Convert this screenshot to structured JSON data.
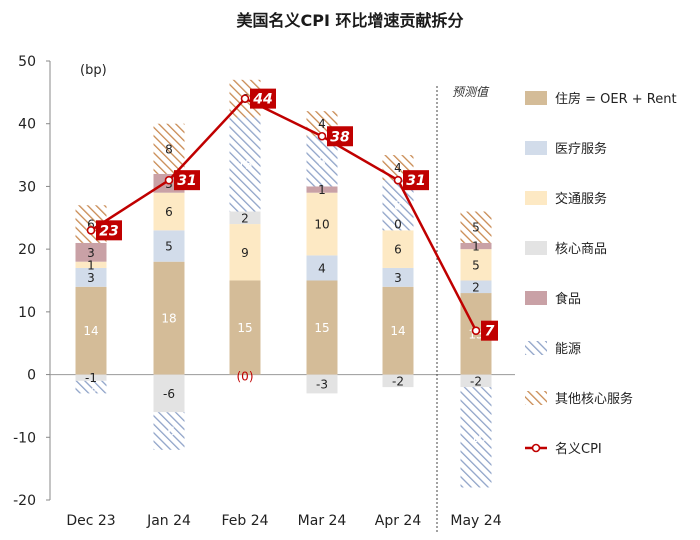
{
  "chart_data": {
    "type": "bar",
    "stacked": true,
    "title": "美国名义CPI 环比增速贡献拆分",
    "unit_label": "(bp)",
    "forecast_label": "预测值",
    "categories": [
      "Dec 23",
      "Jan 24",
      "Feb 24",
      "Mar 24",
      "Apr 24",
      "May 24"
    ],
    "ylim": [
      -20,
      50
    ],
    "yticks": [
      -20,
      -10,
      0,
      10,
      20,
      30,
      40,
      50
    ],
    "series": [
      {
        "name": "住房 = OER + Rent",
        "color": "#d4bc98",
        "pattern": "solid",
        "values": [
          14,
          18,
          15,
          15,
          14,
          13
        ],
        "labels": [
          "14",
          "18",
          "15",
          "15",
          "14",
          "13"
        ],
        "label_color": "#ffffff"
      },
      {
        "name": "医疗服务",
        "color": "#d2dcea",
        "pattern": "solid",
        "values": [
          3,
          5,
          0,
          4,
          3,
          2
        ],
        "labels": [
          "3",
          "5",
          "(0)",
          "4",
          "3",
          "2"
        ],
        "label_color": "#222222"
      },
      {
        "name": "交通服务",
        "color": "#fde9c4",
        "pattern": "solid",
        "values": [
          1,
          6,
          9,
          10,
          6,
          5
        ],
        "labels": [
          "1",
          "6",
          "9",
          "10",
          "6",
          "5"
        ],
        "label_color": "#222222"
      },
      {
        "name": "核心商品",
        "color": "#e3e3e3",
        "pattern": "solid",
        "values": [
          -1,
          -6,
          2,
          -3,
          -2,
          -2
        ],
        "labels": [
          "-1",
          "-6",
          "2",
          "-3",
          "-2",
          "-2"
        ],
        "label_color": "#222222"
      },
      {
        "name": "食品",
        "color": "#c9a1a6",
        "pattern": "solid",
        "values": [
          3,
          3,
          0,
          1,
          0,
          1
        ],
        "labels": [
          "3",
          "3",
          "",
          "1",
          "0",
          "1"
        ],
        "label_color": "#222222"
      },
      {
        "name": "能源",
        "color": "#8fa3c8",
        "pattern": "diag-blue",
        "values": [
          -2,
          -6,
          15,
          8,
          8,
          -16
        ],
        "labels": [
          "-2",
          "-6",
          "15",
          "8",
          "8",
          "-16"
        ],
        "label_color": "#ffffff"
      },
      {
        "name": "其他核心服务",
        "color": "#c98a52",
        "pattern": "diag-orange",
        "values": [
          6,
          8,
          6,
          4,
          4,
          5
        ],
        "labels": [
          "6",
          "8",
          "6",
          "4",
          "4",
          "5"
        ],
        "label_color": "#222222"
      }
    ],
    "line": {
      "name": "名义CPI",
      "color": "#c00000",
      "values": [
        23,
        31,
        44,
        38,
        31,
        7
      ],
      "labels": [
        "23",
        "31",
        "44",
        "38",
        "31",
        "7"
      ]
    },
    "zero_marker_label": "(0)",
    "legend_position": "right"
  }
}
